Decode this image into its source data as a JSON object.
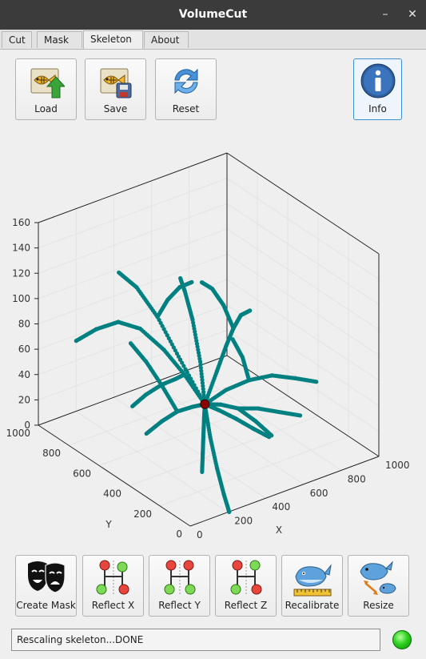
{
  "window": {
    "title": "VolumeCut",
    "minimize_glyph": "–",
    "close_glyph": "✕"
  },
  "tabs": [
    {
      "label": "Cut"
    },
    {
      "label": "Mask"
    },
    {
      "label": "Skeleton",
      "active": true
    },
    {
      "label": "About"
    }
  ],
  "toolbar": {
    "load_label": "Load",
    "save_label": "Save",
    "reset_label": "Reset",
    "info_label": "Info"
  },
  "bottom_toolbar": {
    "create_mask_label": "Create Mask",
    "reflect_x_label": "Reflect X",
    "reflect_y_label": "Reflect Y",
    "reflect_z_label": "Reflect Z",
    "recalibrate_label": "Recalibrate",
    "resize_label": "Resize"
  },
  "status": {
    "text": "Rescaling skeleton...DONE",
    "indicator_color": "#22cc22"
  },
  "chart_data": {
    "type": "scatter3d",
    "title": "",
    "xlabel": "X",
    "ylabel": "Y",
    "zlabel": "",
    "xlim": [
      0,
      1000
    ],
    "ylim": [
      0,
      1000
    ],
    "zlim": [
      0,
      160
    ],
    "x_ticks": [
      0,
      200,
      400,
      600,
      800,
      1000
    ],
    "y_ticks": [
      0,
      200,
      400,
      600,
      800,
      1000
    ],
    "z_ticks": [
      0,
      20,
      40,
      60,
      80,
      100,
      120,
      140,
      160
    ],
    "grid": true,
    "series_color": "#008080",
    "root_color": "#8b0000",
    "root": {
      "x": 480,
      "y": 500,
      "z": 30
    },
    "branches": [
      [
        [
          480,
          500,
          30
        ],
        [
          420,
          560,
          52
        ],
        [
          360,
          620,
          70
        ],
        [
          290,
          690,
          85
        ],
        [
          230,
          760,
          88
        ],
        [
          170,
          830,
          80
        ],
        [
          120,
          900,
          68
        ]
      ],
      [
        [
          480,
          500,
          30
        ],
        [
          430,
          600,
          60
        ],
        [
          390,
          700,
          88
        ],
        [
          360,
          800,
          105
        ],
        [
          330,
          880,
          112
        ]
      ],
      [
        [
          480,
          500,
          30
        ],
        [
          520,
          580,
          55
        ],
        [
          560,
          680,
          78
        ],
        [
          600,
          780,
          90
        ],
        [
          640,
          860,
          92
        ]
      ],
      [
        [
          480,
          500,
          30
        ],
        [
          560,
          520,
          50
        ],
        [
          640,
          560,
          62
        ],
        [
          720,
          610,
          68
        ],
        [
          800,
          660,
          70
        ],
        [
          880,
          700,
          66
        ]
      ],
      [
        [
          480,
          500,
          30
        ],
        [
          560,
          460,
          40
        ],
        [
          650,
          420,
          46
        ],
        [
          740,
          380,
          48
        ],
        [
          830,
          340,
          44
        ],
        [
          910,
          300,
          40
        ]
      ],
      [
        [
          480,
          500,
          30
        ],
        [
          500,
          420,
          35
        ],
        [
          520,
          330,
          38
        ],
        [
          540,
          240,
          34
        ],
        [
          560,
          160,
          28
        ]
      ],
      [
        [
          480,
          500,
          30
        ],
        [
          420,
          430,
          28
        ],
        [
          360,
          360,
          24
        ],
        [
          300,
          290,
          18
        ],
        [
          240,
          220,
          12
        ]
      ],
      [
        [
          480,
          500,
          30
        ],
        [
          400,
          480,
          34
        ],
        [
          310,
          470,
          36
        ],
        [
          220,
          460,
          34
        ],
        [
          130,
          450,
          30
        ]
      ],
      [
        [
          480,
          500,
          30
        ],
        [
          460,
          440,
          10
        ],
        [
          440,
          370,
          -8
        ],
        [
          420,
          300,
          -22
        ],
        [
          400,
          240,
          -30
        ]
      ],
      [
        [
          480,
          500,
          30
        ],
        [
          530,
          470,
          25
        ],
        [
          590,
          430,
          18
        ],
        [
          650,
          390,
          10
        ],
        [
          700,
          350,
          4
        ]
      ],
      [
        [
          420,
          560,
          52
        ],
        [
          340,
          520,
          56
        ],
        [
          250,
          500,
          58
        ],
        [
          160,
          490,
          56
        ],
        [
          80,
          480,
          52
        ]
      ],
      [
        [
          390,
          700,
          88
        ],
        [
          460,
          720,
          96
        ],
        [
          540,
          740,
          100
        ],
        [
          620,
          760,
          98
        ]
      ],
      [
        [
          720,
          610,
          68
        ],
        [
          740,
          700,
          78
        ],
        [
          760,
          800,
          82
        ],
        [
          770,
          880,
          80
        ]
      ],
      [
        [
          520,
          330,
          38
        ],
        [
          600,
          300,
          36
        ],
        [
          680,
          260,
          32
        ],
        [
          760,
          220,
          28
        ]
      ],
      [
        [
          310,
          470,
          36
        ],
        [
          300,
          560,
          50
        ],
        [
          290,
          650,
          62
        ],
        [
          280,
          740,
          70
        ]
      ],
      [
        [
          650,
          420,
          46
        ],
        [
          680,
          500,
          56
        ],
        [
          700,
          590,
          62
        ]
      ]
    ]
  }
}
